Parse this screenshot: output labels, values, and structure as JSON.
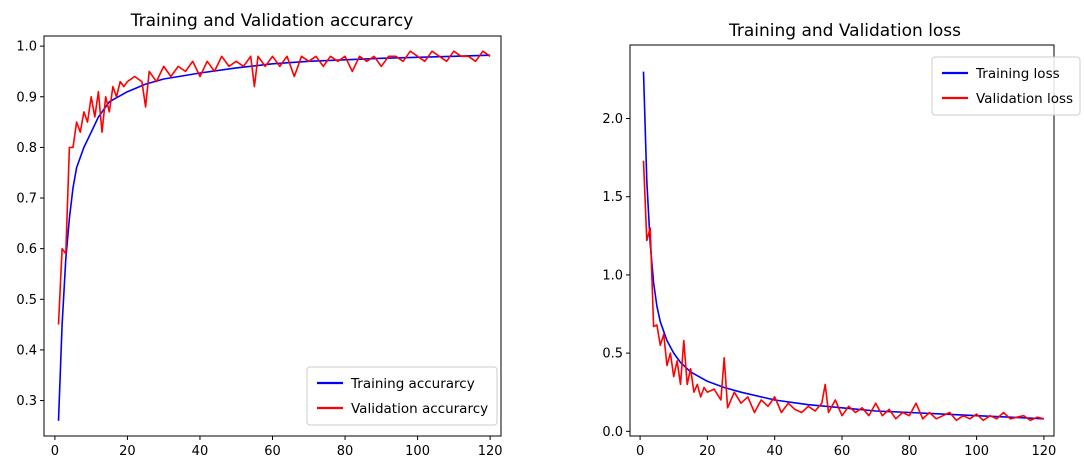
{
  "chart_data": [
    {
      "type": "line",
      "title": "Training and Validation accurarcy",
      "xlabel": "",
      "ylabel": "",
      "xlim": [
        -3,
        123
      ],
      "ylim": [
        0.23,
        1.02
      ],
      "xticks": [
        0,
        20,
        40,
        60,
        80,
        100,
        120
      ],
      "yticks": [
        0.3,
        0.4,
        0.5,
        0.6,
        0.7,
        0.8,
        0.9,
        1.0
      ],
      "ytick_labels": [
        "0.3",
        "0.4",
        "0.5",
        "0.6",
        "0.7",
        "0.8",
        "0.9",
        "1.0"
      ],
      "legend_position": "lower-right",
      "grid": false,
      "series": [
        {
          "name": "Training accurarcy",
          "color": "#0000ff",
          "x": [
            1,
            2,
            3,
            4,
            5,
            6,
            8,
            10,
            12,
            15,
            20,
            25,
            30,
            40,
            50,
            60,
            70,
            80,
            90,
            100,
            110,
            120
          ],
          "y": [
            0.26,
            0.45,
            0.58,
            0.66,
            0.72,
            0.76,
            0.8,
            0.83,
            0.86,
            0.89,
            0.91,
            0.925,
            0.935,
            0.947,
            0.957,
            0.965,
            0.97,
            0.973,
            0.976,
            0.978,
            0.98,
            0.982
          ]
        },
        {
          "name": "Validation accurarcy",
          "color": "#ff0000",
          "x": [
            1,
            2,
            3,
            4,
            5,
            6,
            7,
            8,
            9,
            10,
            11,
            12,
            13,
            14,
            15,
            16,
            17,
            18,
            19,
            20,
            22,
            24,
            25,
            26,
            28,
            30,
            32,
            34,
            36,
            38,
            40,
            42,
            44,
            46,
            48,
            50,
            52,
            54,
            55,
            56,
            58,
            60,
            62,
            64,
            66,
            68,
            70,
            72,
            74,
            76,
            78,
            80,
            82,
            84,
            86,
            88,
            90,
            92,
            94,
            96,
            98,
            100,
            102,
            104,
            106,
            108,
            110,
            112,
            114,
            116,
            118,
            120
          ],
          "y": [
            0.45,
            0.6,
            0.59,
            0.8,
            0.8,
            0.85,
            0.83,
            0.87,
            0.85,
            0.9,
            0.86,
            0.91,
            0.83,
            0.9,
            0.87,
            0.92,
            0.9,
            0.93,
            0.92,
            0.93,
            0.94,
            0.93,
            0.88,
            0.95,
            0.93,
            0.96,
            0.94,
            0.96,
            0.95,
            0.97,
            0.94,
            0.97,
            0.95,
            0.98,
            0.96,
            0.97,
            0.96,
            0.98,
            0.92,
            0.98,
            0.96,
            0.98,
            0.96,
            0.98,
            0.94,
            0.98,
            0.97,
            0.98,
            0.96,
            0.98,
            0.97,
            0.98,
            0.95,
            0.98,
            0.97,
            0.98,
            0.96,
            0.98,
            0.98,
            0.97,
            0.99,
            0.98,
            0.97,
            0.99,
            0.98,
            0.97,
            0.99,
            0.98,
            0.98,
            0.97,
            0.99,
            0.98
          ]
        }
      ]
    },
    {
      "type": "line",
      "title": "Training and Validation loss",
      "xlabel": "",
      "ylabel": "",
      "xlim": [
        -3,
        123
      ],
      "ylim": [
        -0.03,
        2.47
      ],
      "xticks": [
        0,
        20,
        40,
        60,
        80,
        100,
        120
      ],
      "yticks": [
        0.0,
        0.5,
        1.0,
        1.5,
        2.0
      ],
      "ytick_labels": [
        "0.0",
        "0.5",
        "1.0",
        "1.5",
        "2.0"
      ],
      "legend_position": "upper-right",
      "grid": false,
      "series": [
        {
          "name": "Training loss",
          "color": "#0000ff",
          "x": [
            1,
            2,
            3,
            4,
            5,
            6,
            8,
            10,
            12,
            15,
            20,
            25,
            30,
            40,
            50,
            60,
            70,
            80,
            90,
            100,
            110,
            120
          ],
          "y": [
            2.3,
            1.6,
            1.2,
            0.95,
            0.8,
            0.7,
            0.58,
            0.5,
            0.44,
            0.38,
            0.32,
            0.28,
            0.25,
            0.2,
            0.17,
            0.15,
            0.13,
            0.12,
            0.11,
            0.1,
            0.09,
            0.08
          ]
        },
        {
          "name": "Validation loss",
          "color": "#ff0000",
          "x": [
            1,
            2,
            3,
            4,
            5,
            6,
            7,
            8,
            9,
            10,
            11,
            12,
            13,
            14,
            15,
            16,
            17,
            18,
            19,
            20,
            22,
            24,
            25,
            26,
            28,
            30,
            32,
            34,
            36,
            38,
            40,
            42,
            44,
            46,
            48,
            50,
            52,
            54,
            55,
            56,
            58,
            60,
            62,
            64,
            66,
            68,
            70,
            72,
            74,
            76,
            78,
            80,
            82,
            84,
            86,
            88,
            90,
            92,
            94,
            96,
            98,
            100,
            102,
            104,
            106,
            108,
            110,
            112,
            114,
            116,
            118,
            120
          ],
          "y": [
            1.73,
            1.22,
            1.3,
            0.67,
            0.68,
            0.55,
            0.62,
            0.42,
            0.5,
            0.35,
            0.45,
            0.3,
            0.58,
            0.3,
            0.4,
            0.25,
            0.3,
            0.22,
            0.28,
            0.25,
            0.27,
            0.2,
            0.47,
            0.15,
            0.25,
            0.18,
            0.22,
            0.12,
            0.2,
            0.16,
            0.22,
            0.12,
            0.18,
            0.14,
            0.12,
            0.16,
            0.13,
            0.18,
            0.3,
            0.12,
            0.2,
            0.1,
            0.16,
            0.12,
            0.15,
            0.1,
            0.18,
            0.1,
            0.14,
            0.08,
            0.12,
            0.1,
            0.18,
            0.08,
            0.12,
            0.08,
            0.1,
            0.12,
            0.07,
            0.1,
            0.08,
            0.11,
            0.07,
            0.1,
            0.08,
            0.12,
            0.08,
            0.09,
            0.1,
            0.07,
            0.09,
            0.08
          ]
        }
      ]
    }
  ]
}
